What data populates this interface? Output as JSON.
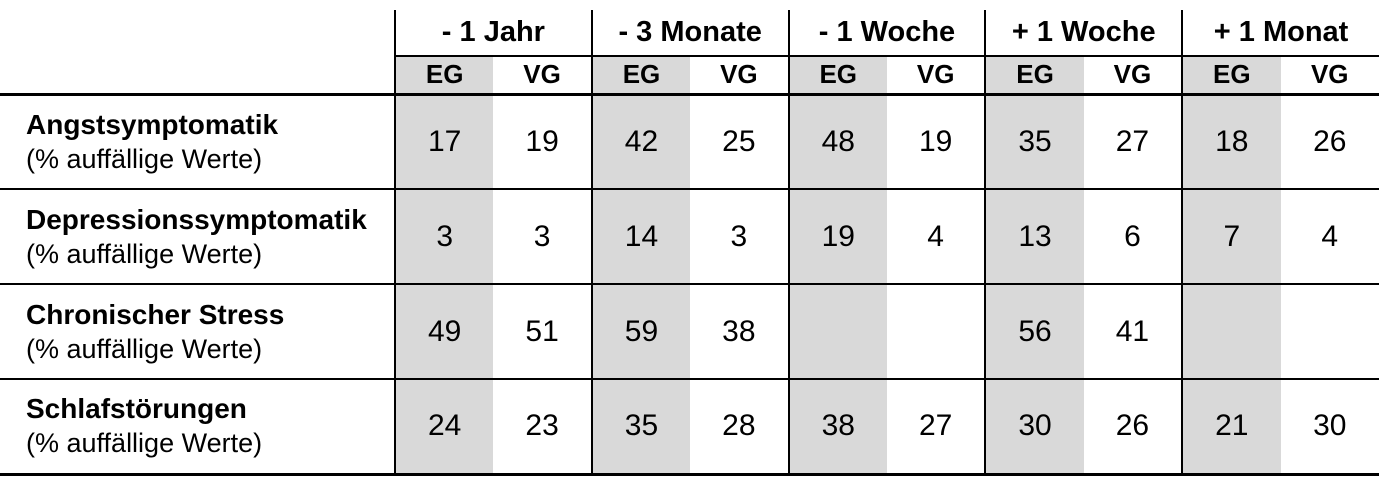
{
  "chart_data": {
    "type": "table",
    "column_groups": [
      "- 1 Jahr",
      "- 3 Monate",
      "- 1 Woche",
      "+ 1 Woche",
      "+ 1 Monat"
    ],
    "subcolumns": [
      "EG",
      "VG"
    ],
    "rows": [
      {
        "label": "Angstsymptomatik",
        "sublabel": "(% auffällige Werte)",
        "values": [
          "17",
          "19",
          "42",
          "25",
          "48",
          "19",
          "35",
          "27",
          "18",
          "26"
        ]
      },
      {
        "label": "Depressionssymptomatik",
        "sublabel": "(% auffällige Werte)",
        "values": [
          "3",
          "3",
          "14",
          "3",
          "19",
          "4",
          "13",
          "6",
          "7",
          "4"
        ]
      },
      {
        "label": "Chronischer Stress",
        "sublabel": "(% auffällige Werte)",
        "values": [
          "49",
          "51",
          "59",
          "38",
          "",
          "",
          "56",
          "41",
          "",
          ""
        ]
      },
      {
        "label": "Schlafstörungen",
        "sublabel": "(% auffällige Werte)",
        "values": [
          "24",
          "23",
          "35",
          "28",
          "38",
          "27",
          "30",
          "26",
          "21",
          "30"
        ]
      }
    ],
    "colors": {
      "shaded_column": "#d9d9d9",
      "border": "#000000",
      "text": "#000000",
      "background": "#ffffff"
    },
    "layout": {
      "shaded_subcolumn": "EG",
      "grid": "vertical-rules-between-period-groups-only",
      "legend_position": "none"
    }
  }
}
